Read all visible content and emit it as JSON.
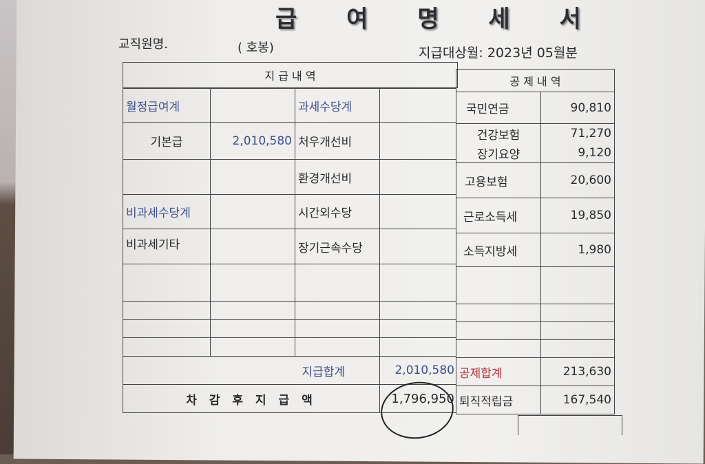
{
  "title": "급 여 명 세 서",
  "employee_label": "교직원명.",
  "grade_label": "( 호봉)",
  "pay_period": "지급대상월: 2023년 05월분",
  "headers": {
    "payments": "지 급 내 역",
    "deductions": "공 제 내 역"
  },
  "payments": {
    "monthly_total_label": "월정급여계",
    "base_pay_label": "기본급",
    "base_pay": "2,010,580",
    "taxable_allowance_label": "과세수당계",
    "treatment_improvement_label": "처우개선비",
    "environment_improvement_label": "환경개선비",
    "nontaxable_allowance_label": "비과세수당계",
    "overtime_label": "시간외수당",
    "nontaxable_other_label": "비과세기타",
    "longevity_label": "장기근속수당"
  },
  "deductions": [
    {
      "label": "국민연금",
      "value": "90,810"
    },
    {
      "label": "건강보험",
      "value": "71,270"
    },
    {
      "label": "장기요양",
      "value": "9,120"
    },
    {
      "label": "고용보험",
      "value": "20,600"
    },
    {
      "label": "근로소득세",
      "value": "19,850"
    },
    {
      "label": "소득지방세",
      "value": "1,980"
    }
  ],
  "totals": {
    "pay_total_label": "지급합계",
    "pay_total": "2,010,580",
    "deduction_total_label": "공제합계",
    "deduction_total": "213,630",
    "net_pay_label": "차 감 후 지 급 액",
    "net_pay": "1,796,950",
    "retirement_label": "퇴직적립금",
    "retirement": "167,540"
  },
  "colors": {
    "blue_label": "#3c4f8c",
    "red_label": "#b4323a"
  }
}
